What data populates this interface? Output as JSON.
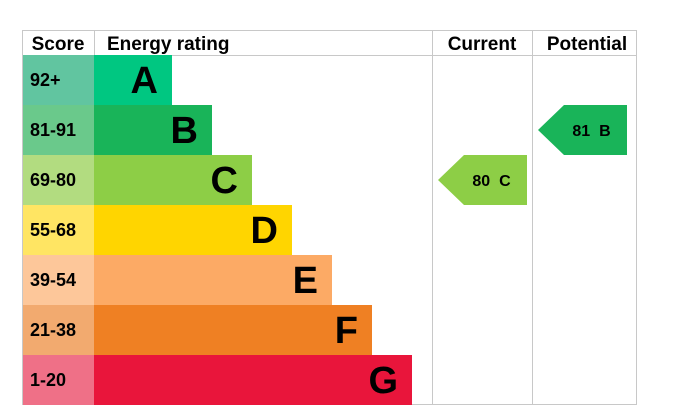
{
  "chart_data": {
    "type": "table",
    "headers": {
      "score": "Score",
      "rating": "Energy rating",
      "current": "Current",
      "potential": "Potential"
    },
    "bands": [
      {
        "score": "92+",
        "letter": "A",
        "main_color": "#00c781",
        "score_color": "#61c5a0"
      },
      {
        "score": "81-91",
        "letter": "B",
        "main_color": "#19b459",
        "score_color": "#6ac98b"
      },
      {
        "score": "69-80",
        "letter": "C",
        "main_color": "#8dce46",
        "score_color": "#b2dc80"
      },
      {
        "score": "55-68",
        "letter": "D",
        "main_color": "#ffd500",
        "score_color": "#ffe563"
      },
      {
        "score": "39-54",
        "letter": "E",
        "main_color": "#fcaa65",
        "score_color": "#fdc79a"
      },
      {
        "score": "21-38",
        "letter": "F",
        "main_color": "#ef8023",
        "score_color": "#f2aa6f"
      },
      {
        "score": "1-20",
        "letter": "G",
        "main_color": "#e9153b",
        "score_color": "#ef7087"
      }
    ],
    "current": {
      "value": 80,
      "letter": "C",
      "label": "80  C",
      "color": "#8dce46"
    },
    "potential": {
      "value": 81,
      "letter": "B",
      "label": "81  B",
      "color": "#19b459"
    }
  }
}
